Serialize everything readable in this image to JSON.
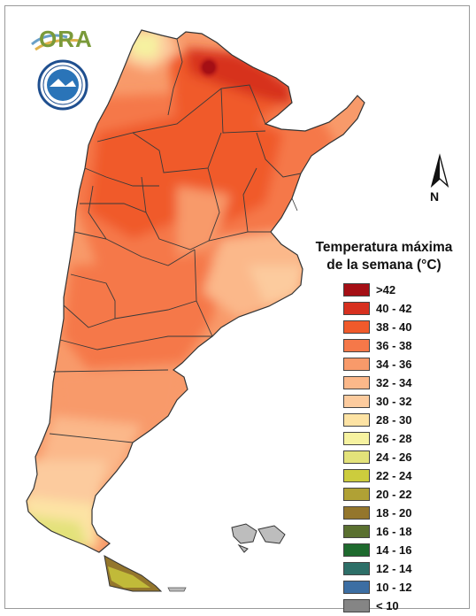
{
  "logo": {
    "text": "ORA"
  },
  "seal": {
    "text": "SERVICIO METEOROLOGICO NACIONAL · ARGENTINA"
  },
  "north_arrow": {
    "label": "N"
  },
  "legend": {
    "title_line1": "Temperatura máxima",
    "title_line2": "de la semana (°C)",
    "items": [
      {
        "label": ">42",
        "color": "#a50f15"
      },
      {
        "label": "40 - 42",
        "color": "#d7301f"
      },
      {
        "label": "38 - 40",
        "color": "#f05a2b"
      },
      {
        "label": "36 - 38",
        "color": "#f57849"
      },
      {
        "label": "34 - 36",
        "color": "#f89a6a"
      },
      {
        "label": "32 - 34",
        "color": "#fbb88a"
      },
      {
        "label": "30 - 32",
        "color": "#fccb9e"
      },
      {
        "label": "28 - 30",
        "color": "#fde3a4"
      },
      {
        "label": "26 - 28",
        "color": "#f6f2a0"
      },
      {
        "label": "24 - 26",
        "color": "#e3e27a"
      },
      {
        "label": "22 - 24",
        "color": "#cccc3d"
      },
      {
        "label": "20 - 22",
        "color": "#b0a135"
      },
      {
        "label": "18 - 20",
        "color": "#94762c"
      },
      {
        "label": "16 - 18",
        "color": "#5a7030"
      },
      {
        "label": "14 - 16",
        "color": "#1e6a2e"
      },
      {
        "label": "12 - 14",
        "color": "#2d6f68"
      },
      {
        "label": "10 - 12",
        "color": "#3c6ea3"
      },
      {
        "label": "< 10",
        "color": "#858585"
      }
    ]
  }
}
